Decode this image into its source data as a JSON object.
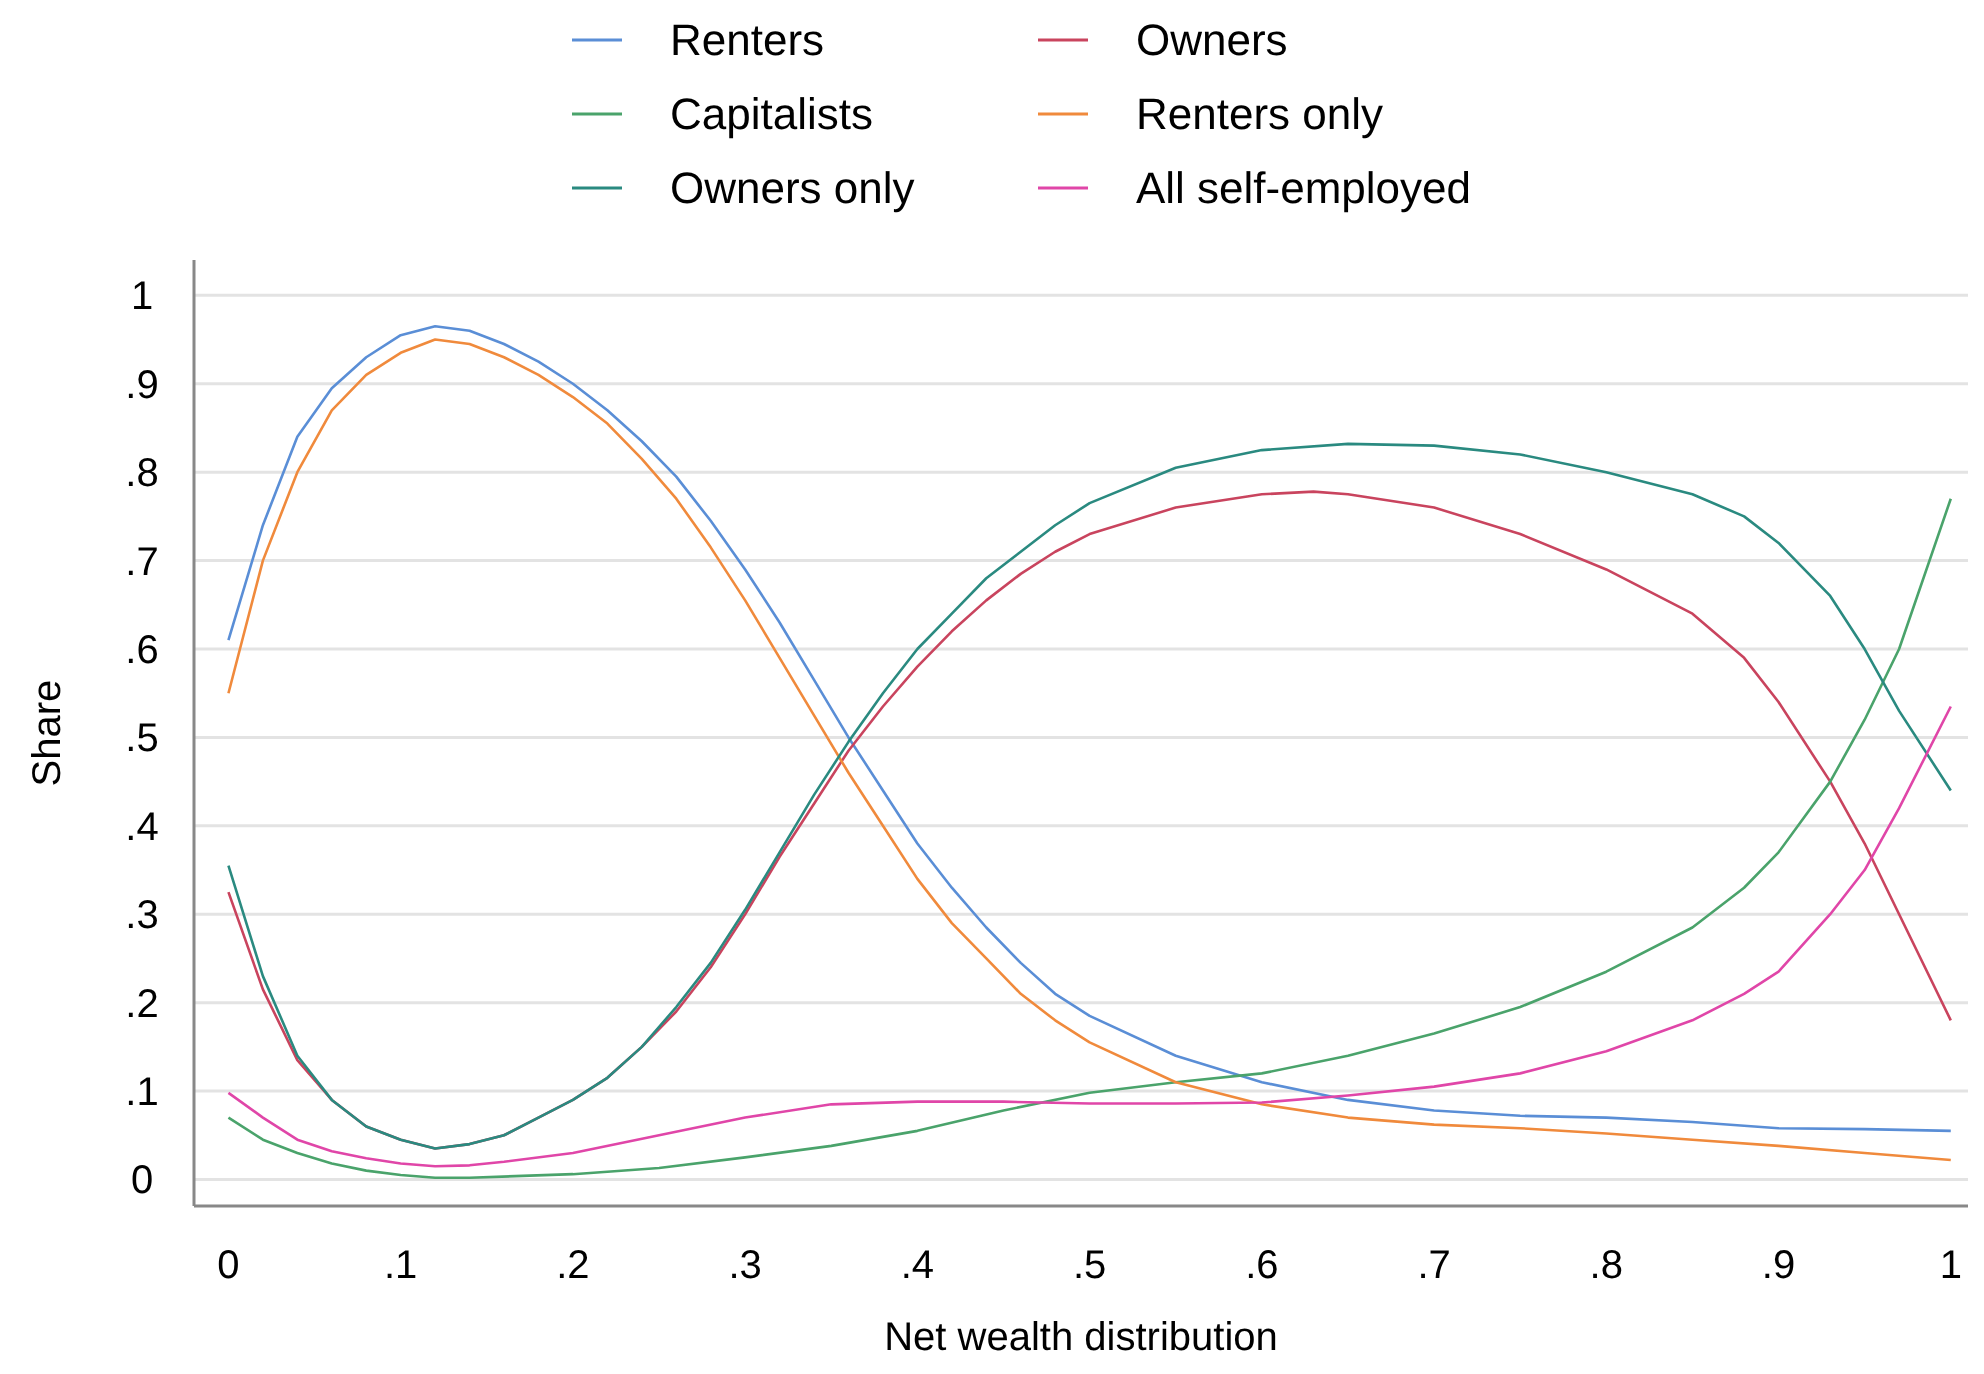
{
  "chart_data": {
    "type": "line",
    "xlabel": "Net wealth distribution",
    "ylabel": "Share",
    "xlim": [
      -0.02,
      1.01
    ],
    "ylim": [
      -0.03,
      1.04
    ],
    "xticks": [
      {
        "value": 0,
        "label": "0"
      },
      {
        "value": 0.1,
        "label": ".1"
      },
      {
        "value": 0.2,
        "label": ".2"
      },
      {
        "value": 0.3,
        "label": ".3"
      },
      {
        "value": 0.4,
        "label": ".4"
      },
      {
        "value": 0.5,
        "label": ".5"
      },
      {
        "value": 0.6,
        "label": ".6"
      },
      {
        "value": 0.7,
        "label": ".7"
      },
      {
        "value": 0.8,
        "label": ".8"
      },
      {
        "value": 0.9,
        "label": ".9"
      },
      {
        "value": 1,
        "label": "1"
      }
    ],
    "yticks": [
      {
        "value": 0,
        "label": "0"
      },
      {
        "value": 0.1,
        "label": ".1"
      },
      {
        "value": 0.2,
        "label": ".2"
      },
      {
        "value": 0.3,
        "label": ".3"
      },
      {
        "value": 0.4,
        "label": ".4"
      },
      {
        "value": 0.5,
        "label": ".5"
      },
      {
        "value": 0.6,
        "label": ".6"
      },
      {
        "value": 0.7,
        "label": ".7"
      },
      {
        "value": 0.8,
        "label": ".8"
      },
      {
        "value": 0.9,
        "label": ".9"
      },
      {
        "value": 1,
        "label": "1"
      }
    ],
    "grid": "y",
    "legend": "top",
    "marker": "none",
    "line_style": "solid",
    "series": [
      {
        "name": "Renters",
        "color": "#5a8ed6",
        "x": [
          0,
          0.02,
          0.04,
          0.06,
          0.08,
          0.1,
          0.12,
          0.14,
          0.16,
          0.18,
          0.2,
          0.22,
          0.24,
          0.26,
          0.28,
          0.3,
          0.32,
          0.34,
          0.36,
          0.38,
          0.4,
          0.42,
          0.44,
          0.46,
          0.48,
          0.5,
          0.55,
          0.6,
          0.65,
          0.7,
          0.75,
          0.8,
          0.85,
          0.9,
          0.95,
          1
        ],
        "values": [
          0.61,
          0.74,
          0.84,
          0.895,
          0.93,
          0.955,
          0.965,
          0.96,
          0.945,
          0.925,
          0.9,
          0.87,
          0.835,
          0.795,
          0.745,
          0.69,
          0.63,
          0.565,
          0.5,
          0.44,
          0.38,
          0.33,
          0.285,
          0.245,
          0.21,
          0.185,
          0.14,
          0.11,
          0.09,
          0.078,
          0.072,
          0.07,
          0.065,
          0.058,
          0.057,
          0.055
        ]
      },
      {
        "name": "Owners",
        "color": "#c9445e",
        "x": [
          0,
          0.02,
          0.04,
          0.06,
          0.08,
          0.1,
          0.12,
          0.14,
          0.16,
          0.18,
          0.2,
          0.22,
          0.24,
          0.26,
          0.28,
          0.3,
          0.32,
          0.34,
          0.36,
          0.38,
          0.4,
          0.42,
          0.44,
          0.46,
          0.48,
          0.5,
          0.55,
          0.6,
          0.63,
          0.65,
          0.7,
          0.75,
          0.8,
          0.85,
          0.88,
          0.9,
          0.93,
          0.95,
          0.97,
          1
        ],
        "values": [
          0.325,
          0.215,
          0.135,
          0.09,
          0.06,
          0.045,
          0.035,
          0.04,
          0.05,
          0.07,
          0.09,
          0.115,
          0.15,
          0.19,
          0.24,
          0.3,
          0.365,
          0.425,
          0.485,
          0.535,
          0.58,
          0.62,
          0.655,
          0.685,
          0.71,
          0.73,
          0.76,
          0.775,
          0.778,
          0.775,
          0.76,
          0.73,
          0.69,
          0.64,
          0.59,
          0.54,
          0.45,
          0.38,
          0.3,
          0.18
        ]
      },
      {
        "name": "Capitalists",
        "color": "#4aa36b",
        "x": [
          0,
          0.02,
          0.04,
          0.06,
          0.08,
          0.1,
          0.12,
          0.14,
          0.2,
          0.25,
          0.3,
          0.35,
          0.4,
          0.45,
          0.5,
          0.55,
          0.6,
          0.65,
          0.7,
          0.75,
          0.8,
          0.85,
          0.88,
          0.9,
          0.93,
          0.95,
          0.97,
          1
        ],
        "values": [
          0.07,
          0.045,
          0.03,
          0.018,
          0.01,
          0.005,
          0.002,
          0.002,
          0.006,
          0.013,
          0.025,
          0.038,
          0.055,
          0.078,
          0.098,
          0.11,
          0.12,
          0.14,
          0.165,
          0.195,
          0.235,
          0.285,
          0.33,
          0.37,
          0.45,
          0.52,
          0.6,
          0.77
        ]
      },
      {
        "name": "Renters only",
        "color": "#f08a3c",
        "x": [
          0,
          0.02,
          0.04,
          0.06,
          0.08,
          0.1,
          0.12,
          0.14,
          0.16,
          0.18,
          0.2,
          0.22,
          0.24,
          0.26,
          0.28,
          0.3,
          0.32,
          0.34,
          0.36,
          0.38,
          0.4,
          0.42,
          0.44,
          0.46,
          0.48,
          0.5,
          0.55,
          0.6,
          0.65,
          0.7,
          0.75,
          0.8,
          0.85,
          0.9,
          0.95,
          1
        ],
        "values": [
          0.55,
          0.7,
          0.8,
          0.87,
          0.91,
          0.935,
          0.95,
          0.945,
          0.93,
          0.91,
          0.885,
          0.855,
          0.815,
          0.77,
          0.715,
          0.655,
          0.59,
          0.525,
          0.46,
          0.4,
          0.34,
          0.29,
          0.25,
          0.21,
          0.18,
          0.155,
          0.11,
          0.085,
          0.07,
          0.062,
          0.058,
          0.052,
          0.045,
          0.038,
          0.03,
          0.022
        ]
      },
      {
        "name": "Owners only",
        "color": "#2a8a80",
        "x": [
          0,
          0.02,
          0.04,
          0.06,
          0.08,
          0.1,
          0.12,
          0.14,
          0.16,
          0.18,
          0.2,
          0.22,
          0.24,
          0.26,
          0.28,
          0.3,
          0.32,
          0.34,
          0.36,
          0.38,
          0.4,
          0.42,
          0.44,
          0.46,
          0.48,
          0.5,
          0.55,
          0.6,
          0.65,
          0.7,
          0.75,
          0.8,
          0.85,
          0.88,
          0.9,
          0.93,
          0.95,
          0.97,
          1
        ],
        "values": [
          0.355,
          0.23,
          0.14,
          0.09,
          0.06,
          0.045,
          0.035,
          0.04,
          0.05,
          0.07,
          0.09,
          0.115,
          0.15,
          0.195,
          0.245,
          0.305,
          0.37,
          0.435,
          0.495,
          0.55,
          0.6,
          0.64,
          0.68,
          0.71,
          0.74,
          0.765,
          0.805,
          0.825,
          0.832,
          0.83,
          0.82,
          0.8,
          0.775,
          0.75,
          0.72,
          0.66,
          0.6,
          0.53,
          0.44
        ]
      },
      {
        "name": "All self-employed",
        "color": "#e046a8",
        "x": [
          0,
          0.02,
          0.04,
          0.06,
          0.08,
          0.1,
          0.12,
          0.14,
          0.16,
          0.2,
          0.25,
          0.3,
          0.35,
          0.4,
          0.45,
          0.5,
          0.55,
          0.6,
          0.65,
          0.7,
          0.75,
          0.8,
          0.85,
          0.88,
          0.9,
          0.93,
          0.95,
          0.97,
          1
        ],
        "values": [
          0.098,
          0.07,
          0.045,
          0.032,
          0.024,
          0.018,
          0.015,
          0.016,
          0.02,
          0.03,
          0.05,
          0.07,
          0.085,
          0.088,
          0.088,
          0.086,
          0.086,
          0.087,
          0.095,
          0.105,
          0.12,
          0.145,
          0.18,
          0.21,
          0.235,
          0.3,
          0.35,
          0.42,
          0.535
        ]
      }
    ]
  }
}
